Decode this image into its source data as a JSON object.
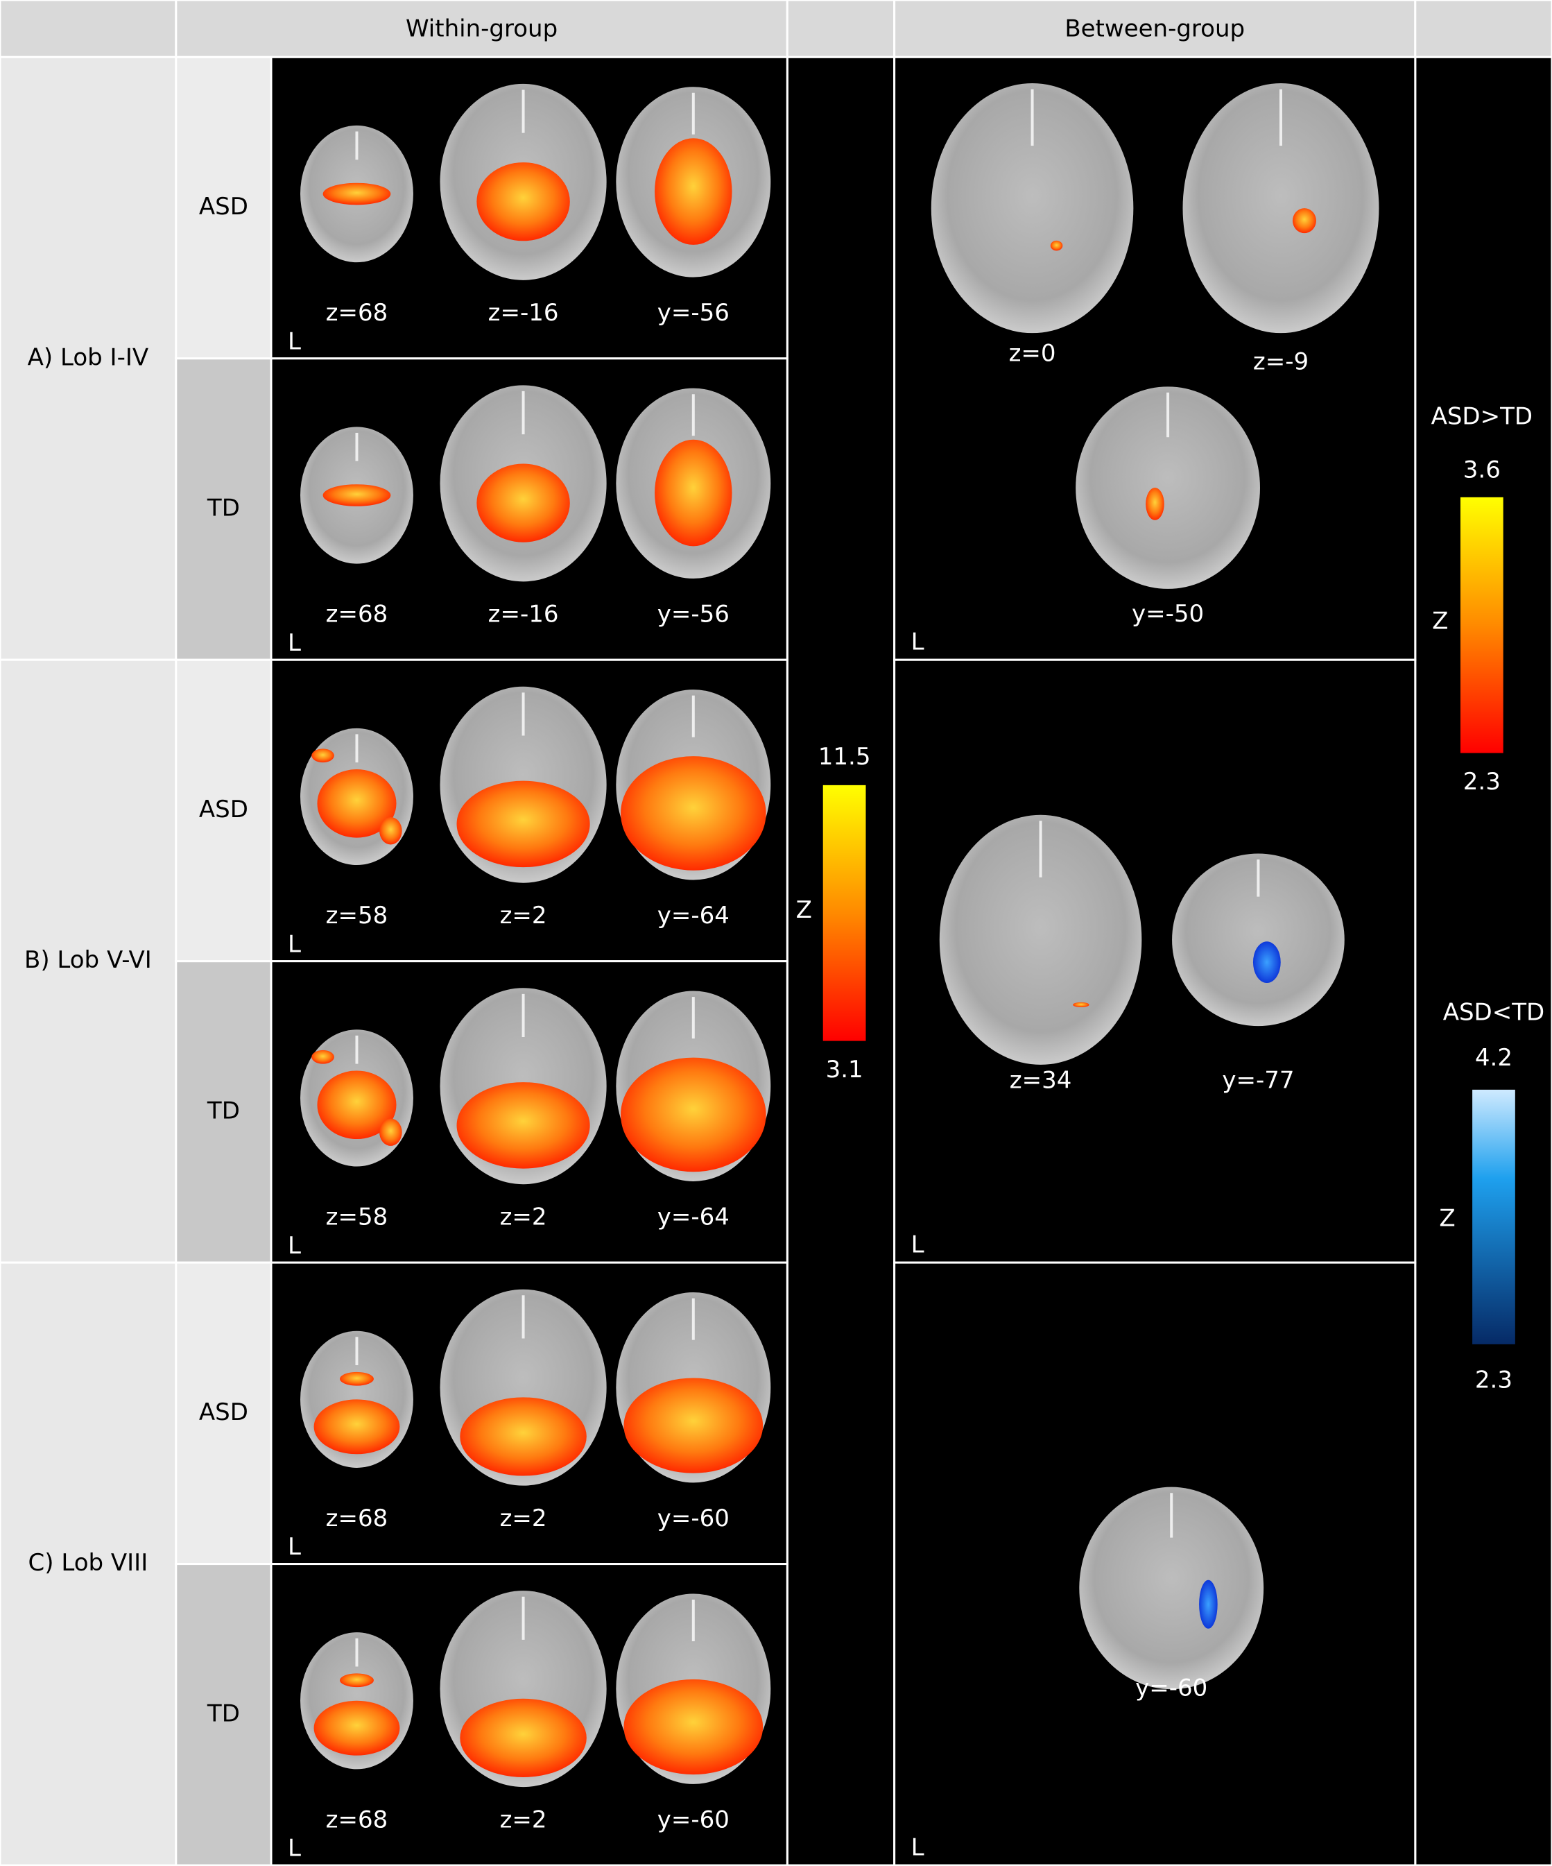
{
  "header": {
    "within": "Within-group",
    "between": "Between-group"
  },
  "rows": [
    {
      "label": "A) Lob I-IV",
      "groups": [
        {
          "name": "ASD",
          "slices": [
            "z=68",
            "z=-16",
            "y=-56"
          ],
          "side": "L"
        },
        {
          "name": "TD",
          "slices": [
            "z=68",
            "z=-16",
            "y=-56"
          ],
          "side": "L"
        }
      ],
      "between": {
        "slices": [
          "z=0",
          "z=-9",
          "y=-50"
        ],
        "side": "L"
      }
    },
    {
      "label": "B) Lob V-VI",
      "groups": [
        {
          "name": "ASD",
          "slices": [
            "z=58",
            "z=2",
            "y=-64"
          ],
          "side": "L"
        },
        {
          "name": "TD",
          "slices": [
            "z=58",
            "z=2",
            "y=-64"
          ],
          "side": "L"
        }
      ],
      "between": {
        "slices": [
          "z=34",
          "y=-77"
        ],
        "side": "L"
      }
    },
    {
      "label": "C) Lob VIII",
      "groups": [
        {
          "name": "ASD",
          "slices": [
            "z=68",
            "z=2",
            "y=-60"
          ],
          "side": "L"
        },
        {
          "name": "TD",
          "slices": [
            "z=68",
            "z=2",
            "y=-60"
          ],
          "side": "L"
        }
      ],
      "between": {
        "slices": [
          "y=-60"
        ],
        "side": "L"
      }
    }
  ],
  "within_colorbar": {
    "max": 11.5,
    "min": 3.1,
    "label": "Z"
  },
  "between_colorbars": [
    {
      "title": "ASD>TD",
      "max": 3.6,
      "min": 2.3,
      "label": "Z"
    },
    {
      "title": "ASD<TD",
      "max": 4.2,
      "min": 2.3,
      "label": "Z"
    }
  ]
}
